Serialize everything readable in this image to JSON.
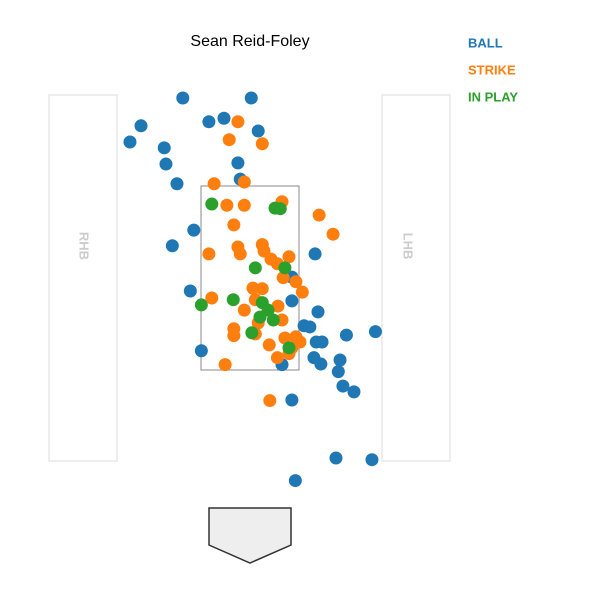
{
  "chart_data": {
    "type": "scatter",
    "title": "Sean Reid-Foley",
    "annotations": [
      "RHB",
      "LHB"
    ],
    "xlim": [
      -4.31,
      6.03
    ],
    "ylim": [
      -2.47,
      7.88
    ],
    "legend": "top-right",
    "series": [
      {
        "name": "BALL",
        "color": "#1f77b4",
        "x": [
          -1.16,
          0.02,
          -0.45,
          -0.71,
          -1.88,
          0.14,
          -2.07,
          -1.48,
          -1.45,
          -0.21,
          -1.26,
          -0.17,
          -0.97,
          -1.34,
          1.12,
          0.72,
          -1.03,
          0.72,
          1.17,
          0.93,
          1.03,
          1.66,
          2.16,
          -0.84,
          1.14,
          1.24,
          0.55,
          1.1,
          1.22,
          1.55,
          1.52,
          1.6,
          1.79,
          0.72,
          1.48,
          2.1,
          0.78
        ],
        "y": [
          6.19,
          6.19,
          5.84,
          5.78,
          5.71,
          5.62,
          5.43,
          5.33,
          5.05,
          5.07,
          4.71,
          4.79,
          3.91,
          3.64,
          3.5,
          3.1,
          2.86,
          2.69,
          2.5,
          2.26,
          2.24,
          2.1,
          2.16,
          1.83,
          1.98,
          1.98,
          1.59,
          1.71,
          1.6,
          1.67,
          1.47,
          1.22,
          1.12,
          0.98,
          -0.02,
          -0.05,
          -0.41
        ]
      },
      {
        "name": "STRIKE",
        "color": "#ff7f0e",
        "x": [
          -0.21,
          -0.36,
          0.21,
          -0.62,
          -0.1,
          0.55,
          -0.4,
          -0.1,
          1.19,
          -0.28,
          1.43,
          -0.21,
          0.21,
          -0.71,
          -0.17,
          0.24,
          0.36,
          0.67,
          0.47,
          0.57,
          0.79,
          0.9,
          0.05,
          0.21,
          0.09,
          -0.66,
          0.48,
          -0.1,
          0.55,
          0.14,
          -0.28,
          -0.28,
          0.09,
          0.33,
          0.6,
          0.79,
          0.72,
          0.86,
          0.67,
          0.47,
          -0.43,
          0.34
        ],
        "y": [
          5.78,
          5.47,
          5.4,
          4.71,
          4.74,
          4.4,
          4.34,
          4.34,
          4.17,
          4.0,
          3.84,
          3.62,
          3.66,
          3.5,
          3.5,
          3.55,
          3.41,
          3.45,
          3.33,
          3.09,
          3.02,
          2.84,
          2.91,
          2.9,
          2.71,
          2.74,
          2.6,
          2.53,
          2.36,
          2.31,
          2.21,
          2.09,
          2.12,
          1.93,
          2.05,
          2.07,
          1.88,
          1.98,
          1.78,
          1.71,
          1.59,
          0.97
        ]
      },
      {
        "name": "IN PLAY",
        "color": "#2ca02c",
        "x": [
          -0.66,
          0.43,
          0.52,
          0.09,
          0.6,
          -0.84,
          -0.29,
          0.21,
          0.31,
          0.17,
          0.4,
          0.03,
          0.67
        ],
        "y": [
          4.36,
          4.29,
          4.28,
          3.26,
          3.26,
          2.62,
          2.71,
          2.66,
          2.53,
          2.41,
          2.36,
          2.14,
          1.88
        ]
      }
    ]
  }
}
